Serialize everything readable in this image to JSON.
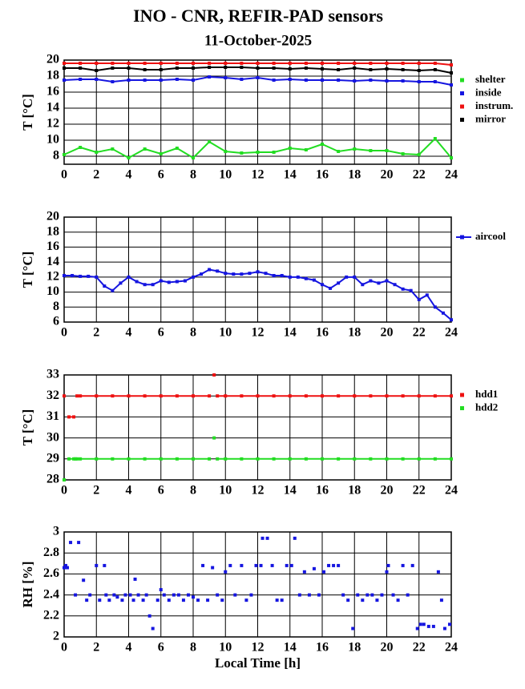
{
  "chart_data": [
    {
      "type": "line",
      "title": "INO - CNR, REFIR-PAD sensors",
      "subtitle": "11-October-2025",
      "ylabel": "T [°C]",
      "xlim": [
        0,
        24
      ],
      "xticks": [
        0,
        2,
        4,
        6,
        8,
        10,
        12,
        14,
        16,
        18,
        20,
        22,
        24
      ],
      "ylim": [
        7,
        20
      ],
      "yticks": [
        8,
        10,
        12,
        14,
        16,
        18,
        20
      ],
      "grid": true,
      "legend": "outside-right",
      "x": [
        0,
        1,
        2,
        3,
        4,
        5,
        6,
        7,
        8,
        9,
        10,
        11,
        12,
        13,
        14,
        15,
        16,
        17,
        18,
        19,
        20,
        21,
        22,
        23,
        24
      ],
      "series": [
        {
          "name": "shelter",
          "color": "#22dd22",
          "values": [
            8.2,
            9.1,
            8.5,
            8.9,
            7.8,
            8.9,
            8.3,
            9.0,
            7.8,
            9.8,
            8.6,
            8.4,
            8.5,
            8.5,
            9.0,
            8.8,
            9.5,
            8.6,
            8.9,
            8.7,
            8.7,
            8.3,
            8.2,
            10.2,
            7.8
          ]
        },
        {
          "name": "inside",
          "color": "#1515e0",
          "values": [
            17.5,
            17.6,
            17.6,
            17.3,
            17.5,
            17.5,
            17.5,
            17.6,
            17.5,
            17.9,
            17.8,
            17.6,
            17.8,
            17.5,
            17.6,
            17.5,
            17.5,
            17.5,
            17.4,
            17.5,
            17.4,
            17.4,
            17.3,
            17.3,
            16.9
          ]
        },
        {
          "name": "instrum.",
          "color": "#ee1111",
          "values": [
            19.6,
            19.6,
            19.6,
            19.6,
            19.6,
            19.6,
            19.6,
            19.6,
            19.6,
            19.6,
            19.6,
            19.6,
            19.6,
            19.6,
            19.6,
            19.6,
            19.6,
            19.6,
            19.6,
            19.6,
            19.6,
            19.6,
            19.6,
            19.6,
            19.4
          ]
        },
        {
          "name": "mirror",
          "color": "#000000",
          "values": [
            19.0,
            19.0,
            18.7,
            19.0,
            19.0,
            18.8,
            18.8,
            19.0,
            19.0,
            19.1,
            19.1,
            19.1,
            19.0,
            19.0,
            18.9,
            19.0,
            18.9,
            18.8,
            19.0,
            18.8,
            18.9,
            18.8,
            18.7,
            18.8,
            18.4
          ]
        }
      ]
    },
    {
      "type": "line",
      "ylabel": "T [°C]",
      "xlim": [
        0,
        24
      ],
      "xticks": [
        0,
        2,
        4,
        6,
        8,
        10,
        12,
        14,
        16,
        18,
        20,
        22,
        24
      ],
      "ylim": [
        6,
        20
      ],
      "yticks": [
        6,
        8,
        10,
        12,
        14,
        16,
        18,
        20
      ],
      "grid": true,
      "legend": "outside-right",
      "x": [
        0,
        0.5,
        1,
        1.5,
        2,
        2.5,
        3,
        3.5,
        4,
        4.5,
        5,
        5.5,
        6,
        6.5,
        7,
        7.5,
        8,
        8.5,
        9,
        9.5,
        10,
        10.5,
        11,
        11.5,
        12,
        12.5,
        13,
        13.5,
        14,
        14.5,
        15,
        15.5,
        16,
        16.5,
        17,
        17.5,
        18,
        18.5,
        19,
        19.5,
        20,
        20.5,
        21,
        21.5,
        22,
        22.5,
        23,
        23.5,
        24
      ],
      "series": [
        {
          "name": "aircool",
          "color": "#1515e0",
          "values": [
            12.2,
            12.2,
            12.1,
            12.1,
            12,
            10.8,
            10.2,
            11.2,
            12,
            11.4,
            11,
            11,
            11.5,
            11.3,
            11.4,
            11.5,
            12,
            12.4,
            13,
            12.8,
            12.5,
            12.4,
            12.4,
            12.5,
            12.7,
            12.5,
            12.2,
            12.2,
            12,
            12,
            11.8,
            11.6,
            11,
            10.5,
            11.2,
            12,
            12,
            11,
            11.5,
            11.2,
            11.5,
            11,
            10.4,
            10.2,
            9,
            9.6,
            8,
            7.2,
            6.3
          ]
        }
      ]
    },
    {
      "type": "line",
      "ylabel": "T [°C]",
      "xlim": [
        0,
        24
      ],
      "xticks": [
        0,
        2,
        4,
        6,
        8,
        10,
        12,
        14,
        16,
        18,
        20,
        22,
        24
      ],
      "ylim": [
        28,
        33
      ],
      "yticks": [
        28,
        29,
        30,
        31,
        32,
        33
      ],
      "grid": true,
      "legend": "outside-right",
      "x": [
        0,
        0.2,
        0.3,
        0.6,
        0.7,
        0.8,
        1,
        2,
        3,
        4,
        5,
        6,
        7,
        8,
        9,
        9.2,
        9.3,
        9.4,
        9.5,
        10,
        11,
        12,
        13,
        14,
        15,
        16,
        17,
        18,
        19,
        20,
        21,
        22,
        23,
        24
      ],
      "series": [
        {
          "name": "hdd1",
          "color": "#ee1111",
          "values": [
            32,
            null,
            31,
            31,
            null,
            32,
            32,
            32,
            32,
            32,
            32,
            32,
            32,
            32,
            32,
            null,
            33,
            null,
            32,
            32,
            32,
            32,
            32,
            32,
            32,
            32,
            32,
            32,
            32,
            32,
            32,
            32,
            32,
            32
          ]
        },
        {
          "name": "hdd2",
          "color": "#22dd22",
          "values": [
            28,
            null,
            29,
            29,
            29,
            29,
            29,
            29,
            29,
            29,
            29,
            29,
            29,
            29,
            29,
            null,
            30,
            null,
            29,
            29,
            29,
            29,
            29,
            29,
            29,
            29,
            29,
            29,
            29,
            29,
            29,
            29,
            29,
            29
          ]
        }
      ]
    },
    {
      "type": "scatter",
      "ylabel": "RH [%]",
      "xlabel": "Local Time [h]",
      "xlim": [
        0,
        24
      ],
      "xticks": [
        0,
        2,
        4,
        6,
        8,
        10,
        12,
        14,
        16,
        18,
        20,
        22,
        24
      ],
      "ylim": [
        2,
        3
      ],
      "yticks": [
        2,
        2.2,
        2.4,
        2.6,
        2.8,
        3
      ],
      "grid": true,
      "x": [
        0,
        0.1,
        0.2,
        0.4,
        0.7,
        0.9,
        1.2,
        1.4,
        1.6,
        2,
        2.2,
        2.5,
        2.6,
        2.8,
        3.1,
        3.3,
        3.6,
        3.8,
        4.1,
        4.3,
        4.4,
        4.6,
        4.9,
        5.1,
        5.3,
        5.5,
        5.8,
        6,
        6.2,
        6.5,
        6.8,
        7.1,
        7.4,
        7.7,
        8,
        8.3,
        8.6,
        8.9,
        9.2,
        9.5,
        9.8,
        10,
        10.3,
        10.6,
        11,
        11.3,
        11.6,
        11.9,
        12.2,
        12.3,
        12.6,
        12.9,
        13.2,
        13.5,
        13.8,
        14.1,
        14.3,
        14.6,
        14.9,
        15.2,
        15.5,
        15.8,
        16.1,
        16.4,
        16.7,
        17,
        17.3,
        17.6,
        17.9,
        18.2,
        18.5,
        18.8,
        19.1,
        19.4,
        19.7,
        20,
        20.1,
        20.4,
        20.7,
        21,
        21.3,
        21.6,
        21.9,
        22.1,
        22.3,
        22.6,
        22.9,
        23.2,
        23.4,
        23.6,
        23.9
      ],
      "series": [
        {
          "color": "#1515e0",
          "values": [
            2.66,
            2.68,
            2.66,
            2.9,
            2.4,
            2.9,
            2.54,
            2.35,
            2.4,
            2.68,
            2.35,
            2.68,
            2.4,
            2.35,
            2.4,
            2.38,
            2.35,
            2.4,
            2.4,
            2.35,
            2.55,
            2.4,
            2.35,
            2.4,
            2.2,
            2.08,
            2.35,
            2.45,
            2.4,
            2.35,
            2.4,
            2.4,
            2.35,
            2.4,
            2.38,
            2.35,
            2.68,
            2.35,
            2.66,
            2.4,
            2.35,
            2.62,
            2.68,
            2.4,
            2.68,
            2.35,
            2.4,
            2.68,
            2.68,
            2.94,
            2.94,
            2.68,
            2.35,
            2.35,
            2.68,
            2.68,
            2.94,
            2.4,
            2.62,
            2.4,
            2.65,
            2.4,
            2.62,
            2.68,
            2.68,
            2.68,
            2.4,
            2.35,
            2.08,
            2.4,
            2.35,
            2.4,
            2.4,
            2.35,
            2.4,
            2.62,
            2.68,
            2.4,
            2.35,
            2.68,
            2.4,
            2.68,
            2.08,
            2.12,
            2.12,
            2.1,
            2.1,
            2.62,
            2.35,
            2.08,
            2.12
          ]
        }
      ]
    }
  ]
}
